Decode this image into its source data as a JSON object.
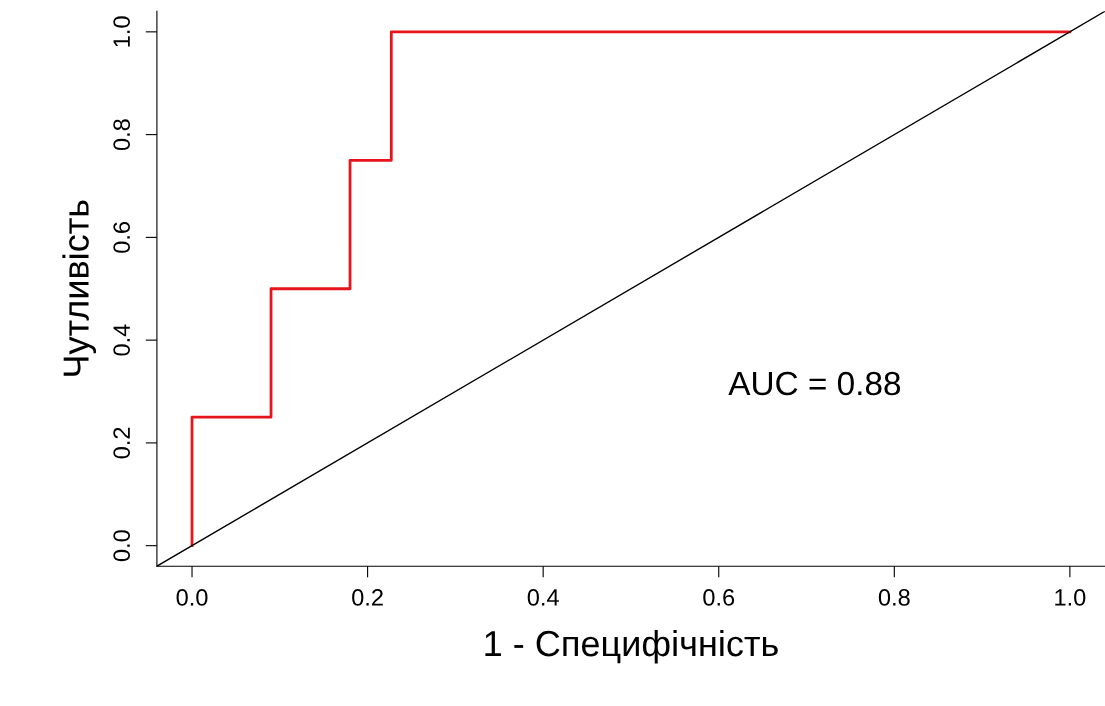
{
  "chart_data": {
    "type": "step",
    "xlabel": "1 - Специфічність",
    "ylabel": "Чутливість",
    "xlim": [
      -0.04,
      1.04
    ],
    "ylim": [
      -0.04,
      1.04
    ],
    "xticks": [
      {
        "value": 0,
        "label": "0.0"
      },
      {
        "value": 0.2,
        "label": "0.2"
      },
      {
        "value": 0.4,
        "label": "0.4"
      },
      {
        "value": 0.6,
        "label": "0.6"
      },
      {
        "value": 0.8,
        "label": "0.8"
      },
      {
        "value": 1,
        "label": "1.0"
      }
    ],
    "yticks": [
      {
        "value": 0,
        "label": "0.0"
      },
      {
        "value": 0.2,
        "label": "0.2"
      },
      {
        "value": 0.4,
        "label": "0.4"
      },
      {
        "value": 0.6,
        "label": "0.6"
      },
      {
        "value": 0.8,
        "label": "0.8"
      },
      {
        "value": 1,
        "label": "1.0"
      }
    ],
    "series": [
      {
        "color": "#e8141c",
        "x": [
          0,
          0,
          0.09,
          0.09,
          0.18,
          0.18,
          0.227,
          0.227,
          1
        ],
        "values": [
          0,
          0.25,
          0.25,
          0.5,
          0.5,
          0.75,
          0.75,
          1,
          1
        ]
      },
      {
        "type": "line",
        "color": "#000000",
        "x": [
          -0.04,
          1.04
        ],
        "values": [
          -0.04,
          1.04
        ]
      }
    ],
    "annotations": [
      "AUC = 0.88"
    ],
    "grid": false,
    "legend": false
  }
}
